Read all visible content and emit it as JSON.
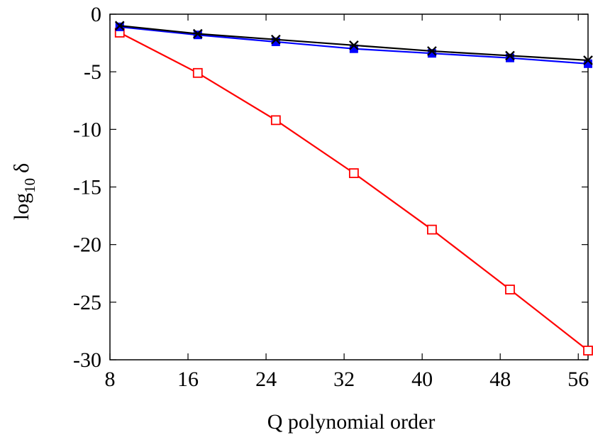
{
  "chart_data": {
    "type": "line",
    "xlabel": "Q polynomial order",
    "ylabel": {
      "main": "log",
      "subscript": "10",
      "symbol": "δ"
    },
    "xlim": [
      8,
      57
    ],
    "ylim": [
      -30,
      0
    ],
    "x_ticks": [
      "8",
      "16",
      "24",
      "32",
      "40",
      "48",
      "56"
    ],
    "y_ticks": [
      "0",
      "-5",
      "-10",
      "-15",
      "-20",
      "-25",
      "-30"
    ],
    "grid": false,
    "series": [
      {
        "color": "#000000",
        "marker": "x",
        "x": [
          9,
          17,
          25,
          33,
          41,
          49,
          57
        ],
        "y": [
          -1.0,
          -1.7,
          -2.2,
          -2.7,
          -3.2,
          -3.6,
          -4.0
        ]
      },
      {
        "color": "#0000ff",
        "marker": "filled-square",
        "x": [
          9,
          17,
          25,
          33,
          41,
          49,
          57
        ],
        "y": [
          -1.1,
          -1.8,
          -2.4,
          -3.0,
          -3.4,
          -3.8,
          -4.3
        ]
      },
      {
        "color": "#ff0000",
        "marker": "open-square",
        "x": [
          9,
          17,
          25,
          33,
          41,
          49,
          57
        ],
        "y": [
          -1.6,
          -5.1,
          -9.2,
          -13.8,
          -18.7,
          -23.9,
          -29.2
        ]
      }
    ]
  }
}
